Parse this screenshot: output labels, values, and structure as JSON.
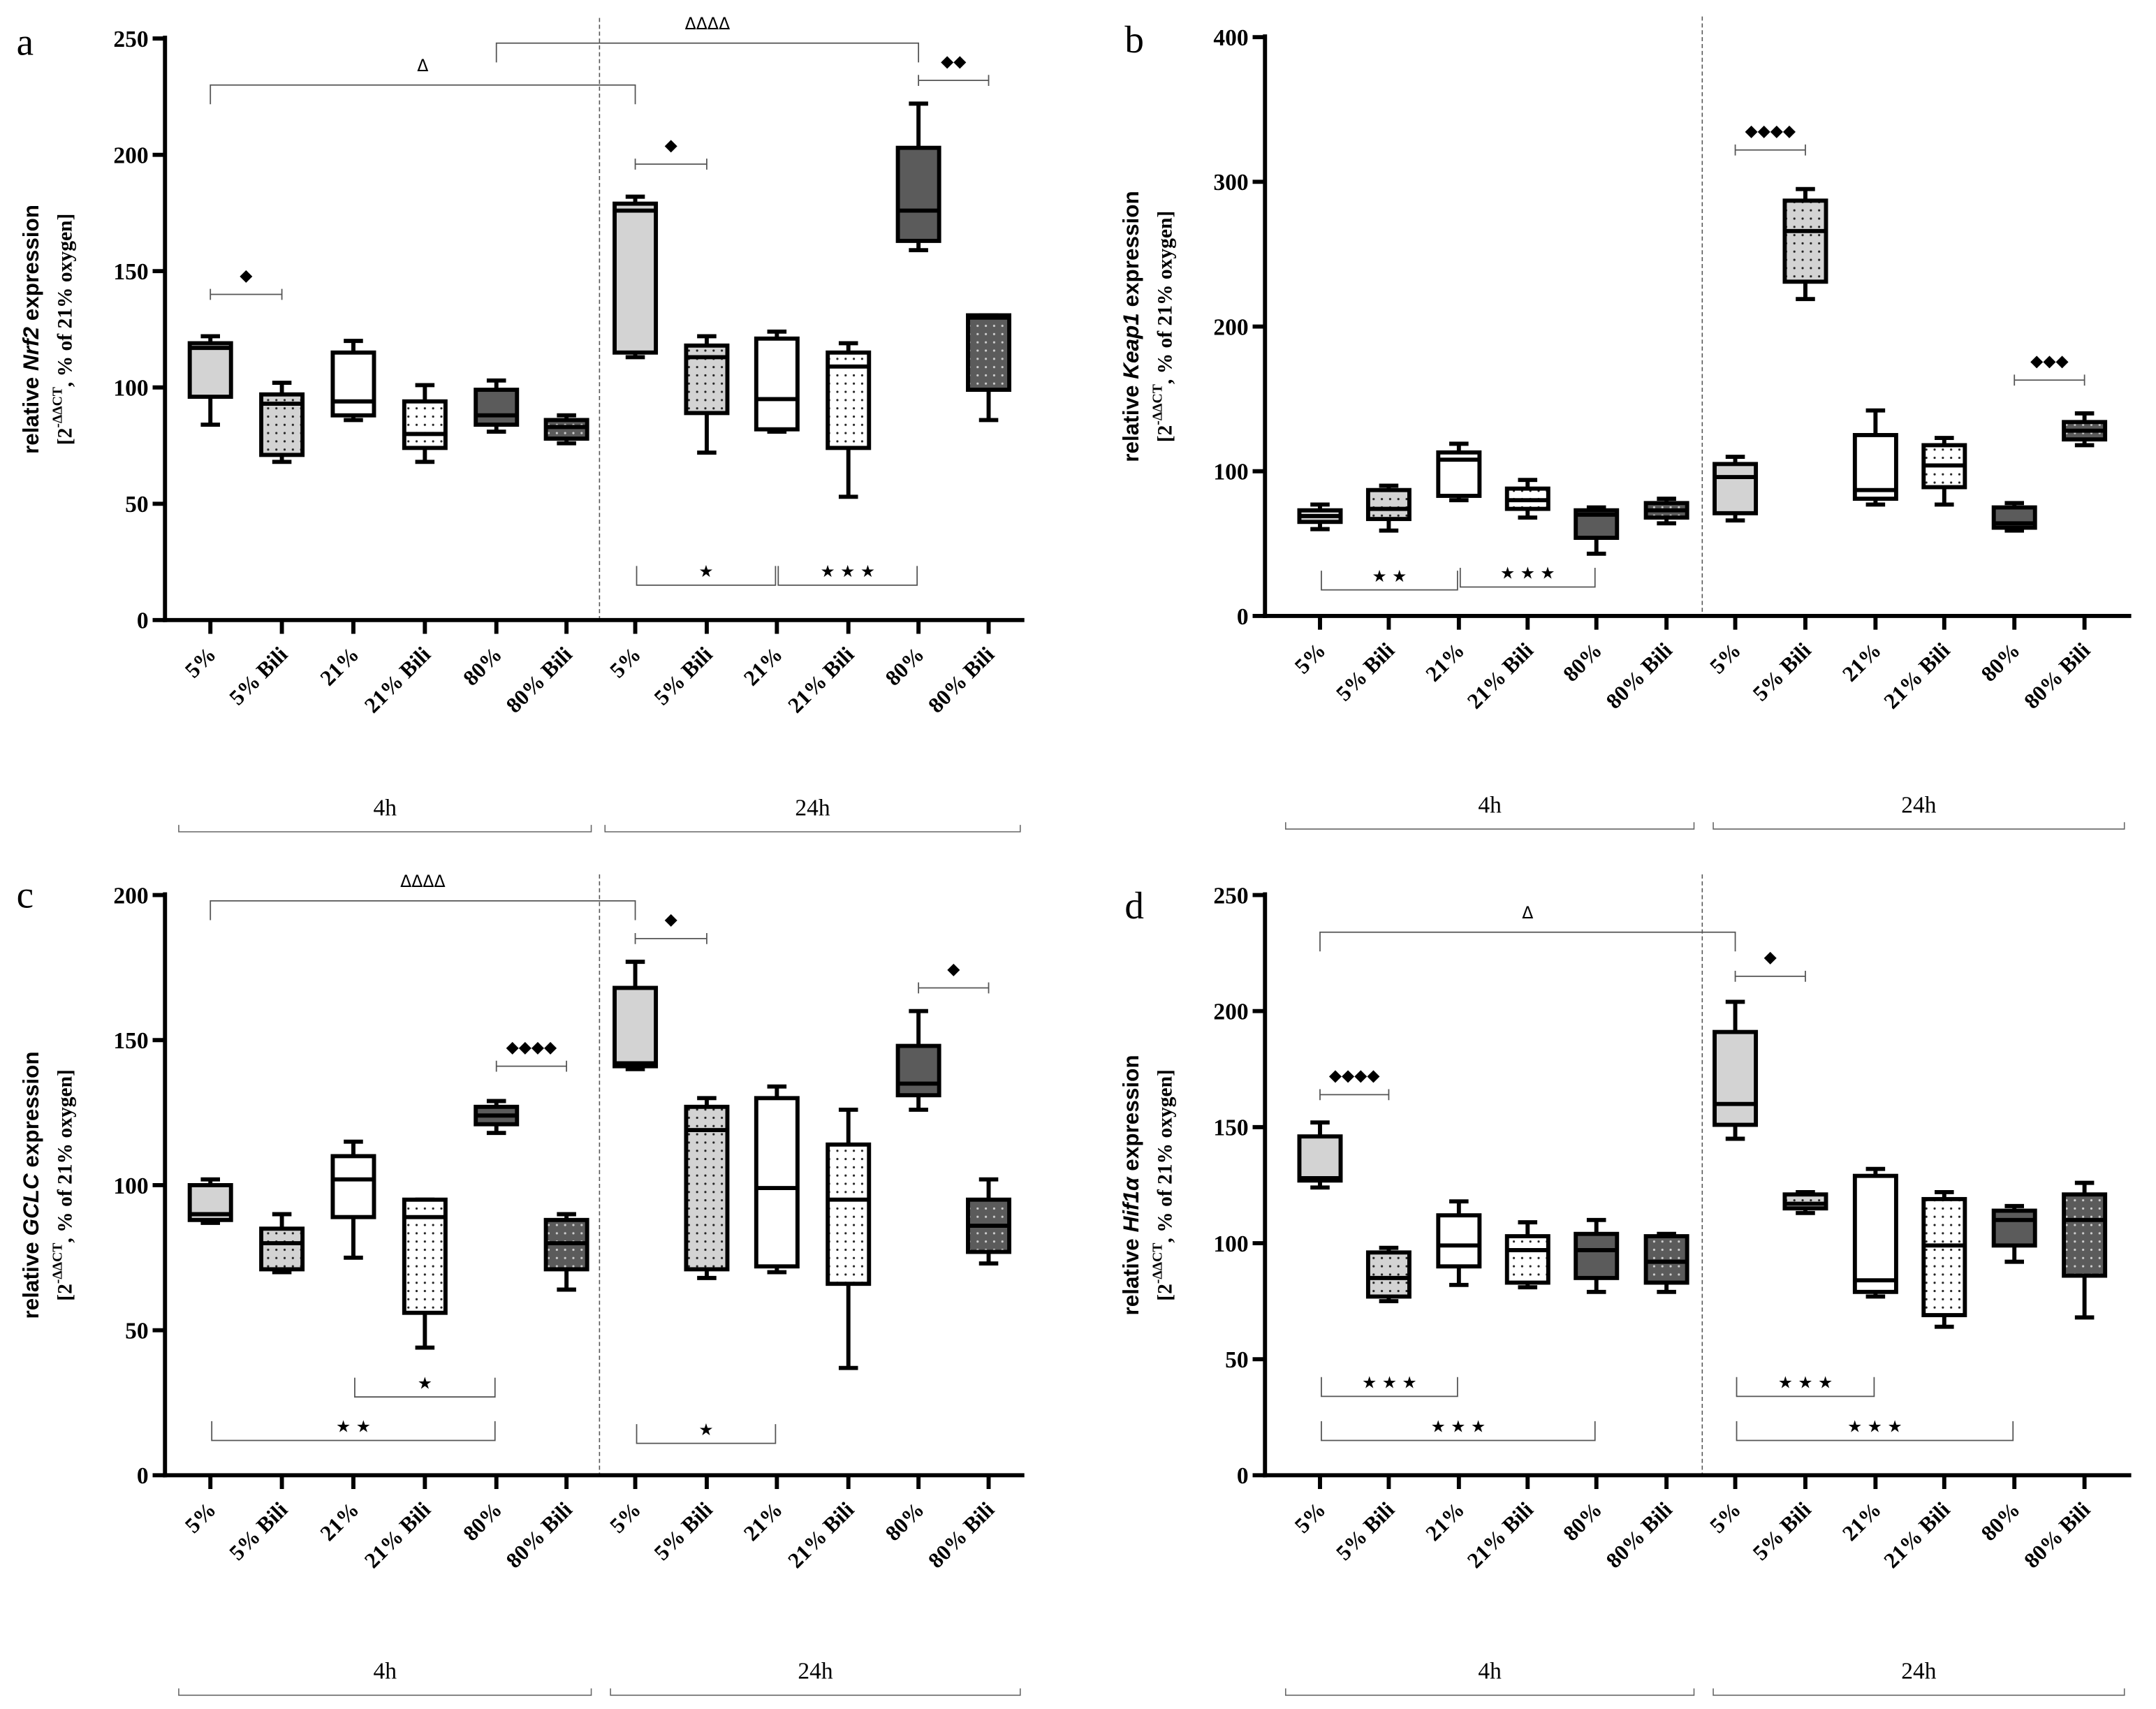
{
  "colors": {
    "light": "#d3d3d3",
    "white": "#ffffff",
    "dark": "#5b5b5b",
    "line": "#000000",
    "bracket": "#555555"
  },
  "chart_data": [
    {
      "type": "box",
      "panel": "a",
      "ylabel": {
        "prefix": "relative ",
        "gene": "Nrf2",
        "suffix": " expression",
        "line2_a": "[2",
        "line2_sup": "-ΔΔCT",
        "line2_b": ", % of 21% oxygen]"
      },
      "ylim": [
        0,
        250
      ],
      "yticks": [
        0,
        50,
        100,
        150,
        200,
        250
      ],
      "categories": [
        "5%",
        "5% Bili",
        "21%",
        "21% Bili",
        "80%",
        "80% Bili",
        "5%",
        "5% Bili",
        "21%",
        "21% Bili",
        "80%",
        "80% Bili"
      ],
      "fills": [
        "light",
        "light-dot",
        "white",
        "white-dot",
        "dark",
        "dark-dot",
        "light",
        "light-dot",
        "white",
        "white-dot",
        "dark",
        "dark-dot"
      ],
      "groups": [
        "4h",
        "24h"
      ],
      "boxes": [
        [
          84,
          96,
          117,
          119,
          122
        ],
        [
          68,
          71,
          93,
          97,
          102
        ],
        [
          86,
          88,
          94,
          115,
          120
        ],
        [
          68,
          74,
          80,
          94,
          101
        ],
        [
          81,
          84,
          88,
          99,
          103
        ],
        [
          76,
          78,
          83,
          86,
          88
        ],
        [
          113,
          115,
          176,
          179,
          182
        ],
        [
          72,
          89,
          113,
          118,
          122
        ],
        [
          81,
          82,
          95,
          121,
          124
        ],
        [
          53,
          74,
          109,
          115,
          119
        ],
        [
          159,
          163,
          176,
          203,
          222
        ],
        [
          86,
          99,
          130,
          131,
          131
        ]
      ],
      "annotations": [
        {
          "from": 0,
          "to": 6,
          "y": 230,
          "label": "Δ",
          "kind": "delta"
        },
        {
          "from": 4,
          "to": 10,
          "y": 248,
          "label": "ΔΔΔΔ",
          "kind": "delta"
        },
        {
          "from": 0,
          "to": 1,
          "y": 140,
          "label": "◆",
          "kind": "diamond"
        },
        {
          "from": 6,
          "to": 7,
          "y": 196,
          "label": "◆",
          "kind": "diamond"
        },
        {
          "from": 10,
          "to": 11,
          "y": 232,
          "label": "◆◆",
          "kind": "diamond"
        },
        {
          "from": 6,
          "to": 8,
          "y": 15,
          "label": "★",
          "kind": "star"
        },
        {
          "from": 8,
          "to": 10,
          "y": 15,
          "label": "★ ★ ★",
          "kind": "star"
        }
      ]
    },
    {
      "type": "box",
      "panel": "b",
      "ylabel": {
        "prefix": "relative ",
        "gene": "Keap1",
        "suffix": " expression",
        "line2_a": "[2",
        "line2_sup": "-ΔΔCT",
        "line2_b": ", % of 21% oxygen]"
      },
      "ylim": [
        0,
        400
      ],
      "yticks": [
        0,
        100,
        200,
        300,
        400
      ],
      "categories": [
        "5%",
        "5% Bili",
        "21%",
        "21% Bili",
        "80%",
        "80% Bili",
        "5%",
        "5% Bili",
        "21%",
        "21% Bili",
        "80%",
        "80% Bili"
      ],
      "fills": [
        "light",
        "light-dot",
        "white",
        "white-dot",
        "dark",
        "dark-dot",
        "light",
        "light-dot",
        "white",
        "white-dot",
        "dark",
        "dark-dot"
      ],
      "groups": [
        "4h",
        "24h"
      ],
      "boxes": [
        [
          60,
          65,
          69,
          73,
          77
        ],
        [
          59,
          67,
          74,
          87,
          90
        ],
        [
          80,
          83,
          108,
          113,
          119
        ],
        [
          68,
          74,
          80,
          88,
          94
        ],
        [
          43,
          54,
          70,
          73,
          75
        ],
        [
          64,
          68,
          73,
          78,
          81
        ],
        [
          66,
          71,
          96,
          105,
          110
        ],
        [
          219,
          231,
          266,
          287,
          295
        ],
        [
          77,
          81,
          87,
          125,
          142
        ],
        [
          77,
          89,
          104,
          118,
          123
        ],
        [
          59,
          61,
          64,
          75,
          78
        ],
        [
          118,
          122,
          128,
          134,
          140
        ]
      ],
      "annotations": [
        {
          "from": 7,
          "to": 6,
          "y": 322,
          "label": "◆◆◆◆",
          "kind": "diamond"
        },
        {
          "from": 10,
          "to": 11,
          "y": 163,
          "label": "◆◆◆",
          "kind": "diamond"
        },
        {
          "from": 0,
          "to": 2,
          "y": 18,
          "label": "★ ★",
          "kind": "star"
        },
        {
          "from": 2,
          "to": 4,
          "y": 20,
          "label": "★ ★ ★",
          "kind": "star"
        }
      ]
    },
    {
      "type": "box",
      "panel": "c",
      "ylabel": {
        "prefix": "relative ",
        "gene": "GCLC",
        "suffix": " expression",
        "line2_a": "[2",
        "line2_sup": "-ΔΔCT",
        "line2_b": ", % of 21% oxygen]"
      },
      "ylim": [
        0,
        200
      ],
      "yticks": [
        0,
        50,
        100,
        150,
        200
      ],
      "categories": [
        "5%",
        "5% Bili",
        "21%",
        "21% Bili",
        "80%",
        "80% Bili",
        "5%",
        "5% Bili",
        "21%",
        "21% Bili",
        "80%",
        "80% Bili"
      ],
      "fills": [
        "light",
        "light-dot",
        "white",
        "white-dot",
        "dark",
        "dark-dot",
        "light",
        "light-dot",
        "white",
        "white-dot",
        "dark",
        "dark-dot"
      ],
      "groups": [
        "4h",
        "24h"
      ],
      "boxes": [
        [
          87,
          88,
          90,
          100,
          102
        ],
        [
          70,
          71,
          80,
          85,
          90
        ],
        [
          75,
          89,
          102,
          110,
          115
        ],
        [
          44,
          56,
          89,
          95,
          95
        ],
        [
          118,
          121,
          124,
          127,
          129
        ],
        [
          64,
          71,
          80,
          88,
          90
        ],
        [
          140,
          141,
          142,
          168,
          177
        ],
        [
          68,
          71,
          119,
          127,
          130
        ],
        [
          70,
          72,
          99,
          130,
          134
        ],
        [
          37,
          66,
          95,
          114,
          126
        ],
        [
          126,
          131,
          135,
          148,
          160
        ],
        [
          73,
          77,
          86,
          95,
          102
        ]
      ],
      "annotations": [
        {
          "from": 0,
          "to": 6,
          "y": 198,
          "label": "ΔΔΔΔ",
          "kind": "delta"
        },
        {
          "from": 6,
          "to": 7,
          "y": 185,
          "label": "◆",
          "kind": "diamond"
        },
        {
          "from": 4,
          "to": 5,
          "y": 141,
          "label": "◆◆◆◆",
          "kind": "diamond"
        },
        {
          "from": 10,
          "to": 11,
          "y": 168,
          "label": "◆",
          "kind": "diamond"
        },
        {
          "from": 2,
          "to": 4,
          "y": 27,
          "label": "★",
          "kind": "star"
        },
        {
          "from": 0,
          "to": 4,
          "y": 12,
          "label": "★ ★",
          "kind": "star"
        },
        {
          "from": 6,
          "to": 8,
          "y": 11,
          "label": "★",
          "kind": "star"
        }
      ]
    },
    {
      "type": "box",
      "panel": "d",
      "ylabel": {
        "prefix": "relative ",
        "gene": "Hif1α",
        "suffix": " expression",
        "line2_a": "[2",
        "line2_sup": "-ΔΔCT",
        "line2_b": ", % of 21% oxygen]"
      },
      "ylim": [
        0,
        250
      ],
      "yticks": [
        0,
        50,
        100,
        150,
        200,
        250
      ],
      "categories": [
        "5%",
        "5% Bili",
        "21%",
        "21% Bili",
        "80%",
        "80% Bili",
        "5%",
        "5% Bili",
        "21%",
        "21% Bili",
        "80%",
        "80% Bili"
      ],
      "fills": [
        "light",
        "light-dot",
        "white",
        "white-dot",
        "dark",
        "dark-dot",
        "light",
        "light-dot",
        "white",
        "white-dot",
        "dark",
        "dark-dot"
      ],
      "groups": [
        "4h",
        "24h"
      ],
      "boxes": [
        [
          124,
          127,
          128,
          146,
          152
        ],
        [
          75,
          77,
          85,
          96,
          98
        ],
        [
          82,
          90,
          99,
          112,
          118
        ],
        [
          81,
          83,
          97,
          103,
          109
        ],
        [
          79,
          85,
          97,
          104,
          110
        ],
        [
          79,
          83,
          92,
          103,
          104
        ],
        [
          145,
          151,
          160,
          191,
          204
        ],
        [
          113,
          115,
          117,
          121,
          122
        ],
        [
          77,
          79,
          84,
          129,
          132
        ],
        [
          64,
          69,
          99,
          119,
          122
        ],
        [
          92,
          99,
          110,
          114,
          116
        ],
        [
          68,
          86,
          110,
          121,
          126
        ]
      ],
      "annotations": [
        {
          "from": 0,
          "to": 6,
          "y": 234,
          "label": "Δ",
          "kind": "delta"
        },
        {
          "from": 0,
          "to": 1,
          "y": 164,
          "label": "◆◆◆◆",
          "kind": "diamond"
        },
        {
          "from": 6,
          "to": 7,
          "y": 215,
          "label": "◆",
          "kind": "diamond"
        },
        {
          "from": 0,
          "to": 2,
          "y": 34,
          "label": "★ ★ ★",
          "kind": "star"
        },
        {
          "from": 0,
          "to": 4,
          "y": 15,
          "label": "★ ★ ★",
          "kind": "star"
        },
        {
          "from": 6,
          "to": 8,
          "y": 34,
          "label": "★ ★ ★",
          "kind": "star"
        },
        {
          "from": 6,
          "to": 10,
          "y": 15,
          "label": "★ ★ ★",
          "kind": "star"
        }
      ]
    }
  ]
}
